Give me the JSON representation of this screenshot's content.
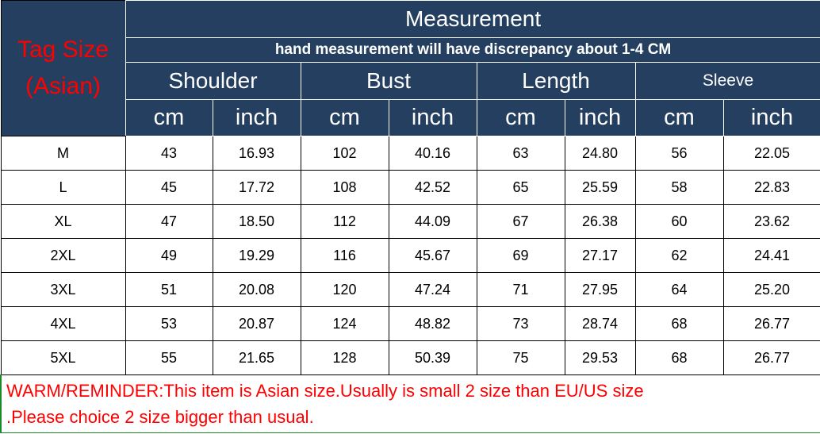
{
  "header": {
    "tag_size_line1": "Tag Size",
    "tag_size_line2": "(Asian)",
    "title": "Measurement",
    "subtitle": "hand measurement will have discrepancy about 1-4 CM",
    "groups": [
      "Shoulder",
      "Bust",
      "Length",
      "Sleeve"
    ],
    "units": [
      "cm",
      "inch",
      "cm",
      "inch",
      "cm",
      "inch",
      "cm",
      "inch"
    ]
  },
  "rows": [
    [
      "M",
      "43",
      "16.93",
      "102",
      "40.16",
      "63",
      "24.80",
      "56",
      "22.05"
    ],
    [
      "L",
      "45",
      "17.72",
      "108",
      "42.52",
      "65",
      "25.59",
      "58",
      "22.83"
    ],
    [
      "XL",
      "47",
      "18.50",
      "112",
      "44.09",
      "67",
      "26.38",
      "60",
      "23.62"
    ],
    [
      "2XL",
      "49",
      "19.29",
      "116",
      "45.67",
      "69",
      "27.17",
      "62",
      "24.41"
    ],
    [
      "3XL",
      "51",
      "20.08",
      "120",
      "47.24",
      "71",
      "27.95",
      "64",
      "25.20"
    ],
    [
      "4XL",
      "53",
      "20.87",
      "124",
      "48.82",
      "73",
      "28.74",
      "68",
      "26.77"
    ],
    [
      "5XL",
      "55",
      "21.65",
      "128",
      "50.39",
      "75",
      "29.53",
      "68",
      "26.77"
    ]
  ],
  "footer": {
    "line1": "WARM/REMINDER:This item is Asian size.Usually is small 2 size than EU/US size",
    "line2": ".Please choice 2 size bigger than usual."
  },
  "colors": {
    "header_bg": "#243f60",
    "header_text": "#ffffff",
    "warning_text": "#ff0000"
  }
}
